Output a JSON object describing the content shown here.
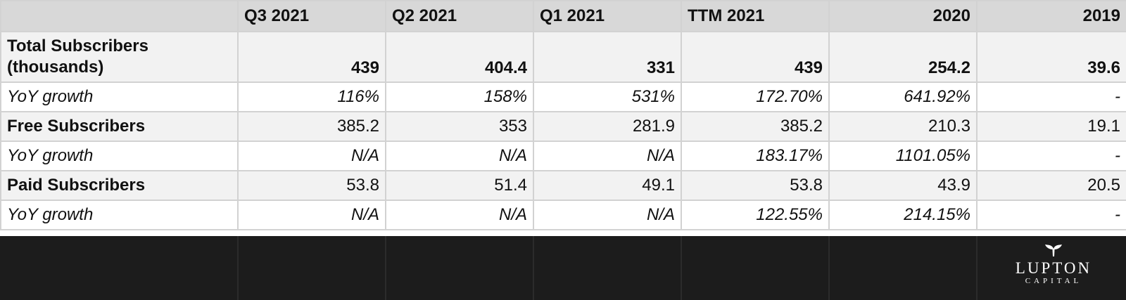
{
  "table": {
    "columns": [
      "",
      "Q3 2021",
      "Q2 2021",
      "Q1 2021",
      "TTM 2021",
      "2020",
      "2019"
    ],
    "rows": [
      {
        "label": "Total Subscribers (thousands)",
        "values": [
          "439",
          "404.4",
          "331",
          "439",
          "254.2",
          "39.6"
        ]
      },
      {
        "label": "YoY growth",
        "values": [
          "116%",
          "158%",
          "531%",
          "172.70%",
          "641.92%",
          "-"
        ]
      },
      {
        "label": "Free Subscribers",
        "values": [
          "385.2",
          "353",
          "281.9",
          "385.2",
          "210.3",
          "19.1"
        ]
      },
      {
        "label": "YoY growth",
        "values": [
          "N/A",
          "N/A",
          "N/A",
          "183.17%",
          "1101.05%",
          "-"
        ]
      },
      {
        "label": "Paid Subscribers",
        "values": [
          "53.8",
          "51.4",
          "49.1",
          "53.8",
          "43.9",
          "20.5"
        ]
      },
      {
        "label": "YoY growth",
        "values": [
          "N/A",
          "N/A",
          "N/A",
          "122.55%",
          "214.15%",
          "-"
        ]
      }
    ]
  },
  "logo": {
    "icon": "whale-tail-icon",
    "word": "LUPTON",
    "sub": "CAPITAL"
  },
  "colors": {
    "header_bg": "#d8d8d8",
    "metric_row_bg": "#f2f2f2",
    "growth_row_bg": "#ffffff",
    "footer_bg": "#1c1c1c",
    "grid": "#d2d2d2"
  }
}
